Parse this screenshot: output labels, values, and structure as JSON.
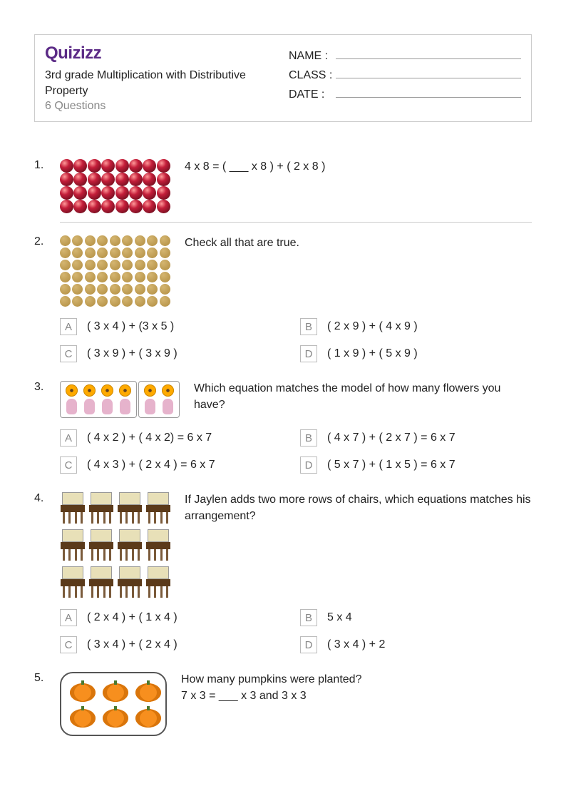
{
  "header": {
    "brand": "Quizizz",
    "title": "3rd grade Multiplication with Distributive Property",
    "question_count": "6 Questions",
    "fields": [
      {
        "label": "NAME :"
      },
      {
        "label": "CLASS :"
      },
      {
        "label": "DATE  :"
      }
    ]
  },
  "colors": {
    "brand": "#5b2a86",
    "muted": "#888888",
    "border": "#cccccc",
    "text": "#222222",
    "ball_hi": "#ff9999",
    "ball_mid": "#c41e3a",
    "ball_dk": "#5b0a18",
    "dot_hi": "#d4b570",
    "dot_lo": "#b8954a",
    "vase": "#e6b3cc",
    "flower": "#ffaa00",
    "flower_center": "#654321",
    "chair_back": "#e8e0b8",
    "chair_seat": "#5b3a1a",
    "chair_leg": "#7a5a3a",
    "pumpkin": "#f78f1e",
    "pumpkin_dk": "#d9750b",
    "stem": "#4a7a2f"
  },
  "questions": [
    {
      "n": "1.",
      "text": "4 x 8 = ( ___ x 8 ) + ( 2 x 8 )",
      "image": {
        "type": "balls",
        "rows": 4,
        "cols": 8
      }
    },
    {
      "n": "2.",
      "text": "Check all that are true.",
      "image": {
        "type": "dots",
        "rows": 6,
        "cols": 9
      },
      "options": [
        {
          "letter": "A",
          "text": "( 3 x 4 ) + (3 x 5 )"
        },
        {
          "letter": "B",
          "text": "( 2 x 9 ) + ( 4 x 9 )"
        },
        {
          "letter": "C",
          "text": "( 3 x 9 ) + ( 3 x 9 )"
        },
        {
          "letter": "D",
          "text": "( 1 x 9 ) + ( 5 x 9 )"
        }
      ]
    },
    {
      "n": "3.",
      "text": "Which equation matches the model of how many flowers you have?",
      "image": {
        "type": "vases",
        "groups": [
          4,
          2
        ]
      },
      "options": [
        {
          "letter": "A",
          "text": "( 4 x 2 ) + ( 4 x 2) = 6 x 7"
        },
        {
          "letter": "B",
          "text": "( 4 x 7 ) + ( 2 x 7 ) = 6 x 7"
        },
        {
          "letter": "C",
          "text": "( 4 x 3 ) + ( 2 x 4 ) = 6 x 7"
        },
        {
          "letter": "D",
          "text": "( 5 x 7 ) + ( 1 x 5 ) = 6 x 7"
        }
      ]
    },
    {
      "n": "4.",
      "text": "If Jaylen adds two more rows of chairs, which equations matches his arrangement?",
      "image": {
        "type": "chairs",
        "rows": 3,
        "cols": 4
      },
      "options": [
        {
          "letter": "A",
          "text": "( 2 x 4 ) + ( 1 x 4 )"
        },
        {
          "letter": "B",
          "text": "5 x 4"
        },
        {
          "letter": "C",
          "text": "( 3 x 4 ) + ( 2 x 4 )"
        },
        {
          "letter": "D",
          "text": "( 3 x 4 ) + 2"
        }
      ]
    },
    {
      "n": "5.",
      "text": "How many pumpkins were planted?\n7 x 3 = ___ x 3 and 3 x 3",
      "image": {
        "type": "pumpkins",
        "rows": 2,
        "cols": 3
      }
    }
  ]
}
